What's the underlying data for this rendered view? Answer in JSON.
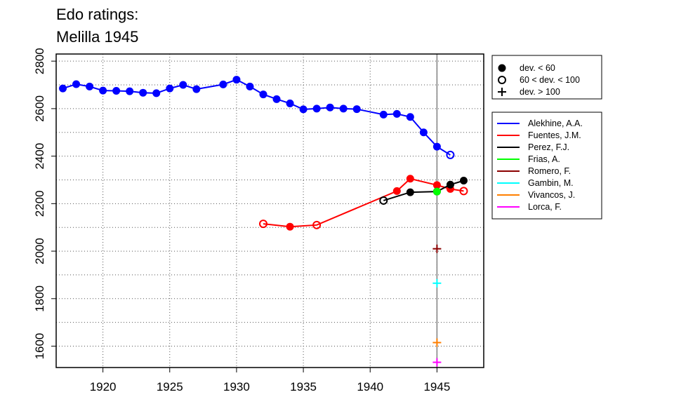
{
  "chart_data": {
    "type": "line",
    "title": [
      "Edo ratings:",
      "Melilla 1945"
    ],
    "xlabel": "",
    "ylabel": "",
    "xlim": [
      1916.5,
      1948.5
    ],
    "ylim": [
      1510,
      2830
    ],
    "x_ticks": [
      1920,
      1925,
      1930,
      1935,
      1940,
      1945
    ],
    "y_ticks": [
      1600,
      1800,
      2000,
      2200,
      2400,
      2600,
      2800
    ],
    "grid": "dotted",
    "reference_line_x": 1945,
    "legend_markers": [
      {
        "marker": "filled",
        "label": "dev. < 60"
      },
      {
        "marker": "open",
        "label": "60 < dev. < 100"
      },
      {
        "marker": "plus",
        "label": "dev. > 100"
      }
    ],
    "series": [
      {
        "name": "Alekhine, A.A.",
        "color": "#0000ff",
        "points": [
          [
            1917,
            2685,
            "filled"
          ],
          [
            1918,
            2703,
            "filled"
          ],
          [
            1919,
            2693,
            "filled"
          ],
          [
            1920,
            2676,
            "filled"
          ],
          [
            1921,
            2675,
            "filled"
          ],
          [
            1922,
            2673,
            "filled"
          ],
          [
            1923,
            2667,
            "filled"
          ],
          [
            1924,
            2665,
            "filled"
          ],
          [
            1925,
            2685,
            "filled"
          ],
          [
            1926,
            2700,
            "filled"
          ],
          [
            1927,
            2682,
            "filled"
          ],
          [
            1929,
            2702,
            "filled"
          ],
          [
            1930,
            2722,
            "filled"
          ],
          [
            1931,
            2693,
            "filled"
          ],
          [
            1932,
            2660,
            "filled"
          ],
          [
            1933,
            2640,
            "filled"
          ],
          [
            1934,
            2622,
            "filled"
          ],
          [
            1935,
            2597,
            "filled"
          ],
          [
            1936,
            2600,
            "filled"
          ],
          [
            1937,
            2605,
            "filled"
          ],
          [
            1938,
            2600,
            "filled"
          ],
          [
            1939,
            2598,
            "filled"
          ],
          [
            1941,
            2575,
            "filled"
          ],
          [
            1942,
            2578,
            "filled"
          ],
          [
            1943,
            2565,
            "filled"
          ],
          [
            1944,
            2500,
            "filled"
          ],
          [
            1945,
            2440,
            "filled"
          ],
          [
            1946,
            2405,
            "open"
          ]
        ]
      },
      {
        "name": "Fuentes, J.M.",
        "color": "#ff0000",
        "points": [
          [
            1932,
            2115,
            "open"
          ],
          [
            1934,
            2103,
            "filled"
          ],
          [
            1936,
            2110,
            "open"
          ],
          [
            1942,
            2253,
            "filled"
          ],
          [
            1943,
            2305,
            "filled"
          ],
          [
            1945,
            2278,
            "filled"
          ],
          [
            1946,
            2262,
            "filled"
          ],
          [
            1947,
            2253,
            "open"
          ]
        ]
      },
      {
        "name": "Perez, F.J.",
        "color": "#000000",
        "points": [
          [
            1941,
            2213,
            "open"
          ],
          [
            1943,
            2248,
            "filled"
          ],
          [
            1945,
            2251,
            "filled"
          ],
          [
            1946,
            2280,
            "filled"
          ],
          [
            1947,
            2297,
            "filled"
          ]
        ]
      },
      {
        "name": "Frias, A.",
        "color": "#00ff00",
        "points": [
          [
            1945,
            2251,
            "filled"
          ]
        ]
      },
      {
        "name": "Romero, F.",
        "color": "#8b0000",
        "points": [
          [
            1945,
            2010,
            "plus"
          ]
        ]
      },
      {
        "name": "Gambin, M.",
        "color": "#00ffff",
        "points": [
          [
            1945,
            1865,
            "plus"
          ]
        ]
      },
      {
        "name": "Vivancos, J.",
        "color": "#ff7f00",
        "points": [
          [
            1945,
            1615,
            "plus"
          ]
        ]
      },
      {
        "name": "Lorca, F.",
        "color": "#ff00ff",
        "points": [
          [
            1945,
            1532,
            "plus"
          ]
        ]
      }
    ]
  }
}
